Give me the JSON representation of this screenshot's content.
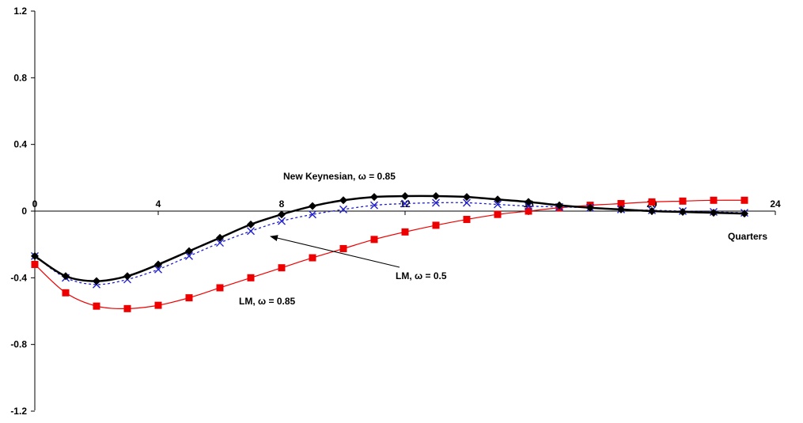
{
  "chart_data": {
    "type": "line",
    "title": "",
    "xlabel": "Quarters",
    "ylabel": "",
    "xlim": [
      0,
      24
    ],
    "ylim": [
      -1.2,
      1.2
    ],
    "x_ticks": [
      0,
      4,
      8,
      12,
      16,
      20,
      24
    ],
    "x_tick_labels": [
      "0",
      "4",
      "8",
      "12",
      "16",
      "20",
      "24"
    ],
    "y_ticks": [
      1.2,
      0.8,
      0.4,
      0,
      -0.4,
      -0.8,
      -1.2
    ],
    "y_tick_labels": [
      "1.2",
      "0.8",
      "0.4",
      "0",
      "-0.4",
      "-0.8",
      "-1.2"
    ],
    "grid": false,
    "legend": "none",
    "x": [
      0,
      1,
      2,
      3,
      4,
      5,
      6,
      7,
      8,
      9,
      10,
      11,
      12,
      13,
      14,
      15,
      16,
      17,
      18,
      19,
      20,
      21,
      22,
      23
    ],
    "series": [
      {
        "key": "nk",
        "color": "#000000",
        "marker": "diamond",
        "values": [
          -0.27,
          -0.39,
          -0.42,
          -0.39,
          -0.32,
          -0.24,
          -0.16,
          -0.08,
          -0.02,
          0.03,
          0.065,
          0.085,
          0.09,
          0.09,
          0.085,
          0.07,
          0.055,
          0.035,
          0.02,
          0.01,
          0.0,
          -0.005,
          -0.01,
          -0.015
        ]
      },
      {
        "key": "lm05",
        "color": "#1f1fd0",
        "marker": "x",
        "values": [
          -0.27,
          -0.4,
          -0.44,
          -0.41,
          -0.35,
          -0.27,
          -0.19,
          -0.12,
          -0.06,
          -0.02,
          0.01,
          0.035,
          0.045,
          0.05,
          0.05,
          0.04,
          0.03,
          0.025,
          0.02,
          0.01,
          0.005,
          0.0,
          -0.005,
          -0.01
        ]
      },
      {
        "key": "lm085",
        "color": "#ee0000",
        "marker": "square",
        "values": [
          -0.32,
          -0.49,
          -0.57,
          -0.585,
          -0.565,
          -0.52,
          -0.46,
          -0.4,
          -0.34,
          -0.28,
          -0.225,
          -0.17,
          -0.125,
          -0.085,
          -0.05,
          -0.02,
          0.0,
          0.02,
          0.035,
          0.045,
          0.055,
          0.06,
          0.065,
          0.065
        ]
      }
    ],
    "annotations": [
      {
        "key": "nk",
        "prefix": "New Keynesian, ",
        "symbol": "ω",
        "suffix": " = 0.85"
      },
      {
        "key": "lm05",
        "prefix": "LM, ",
        "symbol": "ω",
        "suffix": " = 0.5"
      },
      {
        "key": "lm085",
        "prefix": "LM, ",
        "symbol": "ω",
        "suffix": " = 0.85"
      }
    ]
  }
}
